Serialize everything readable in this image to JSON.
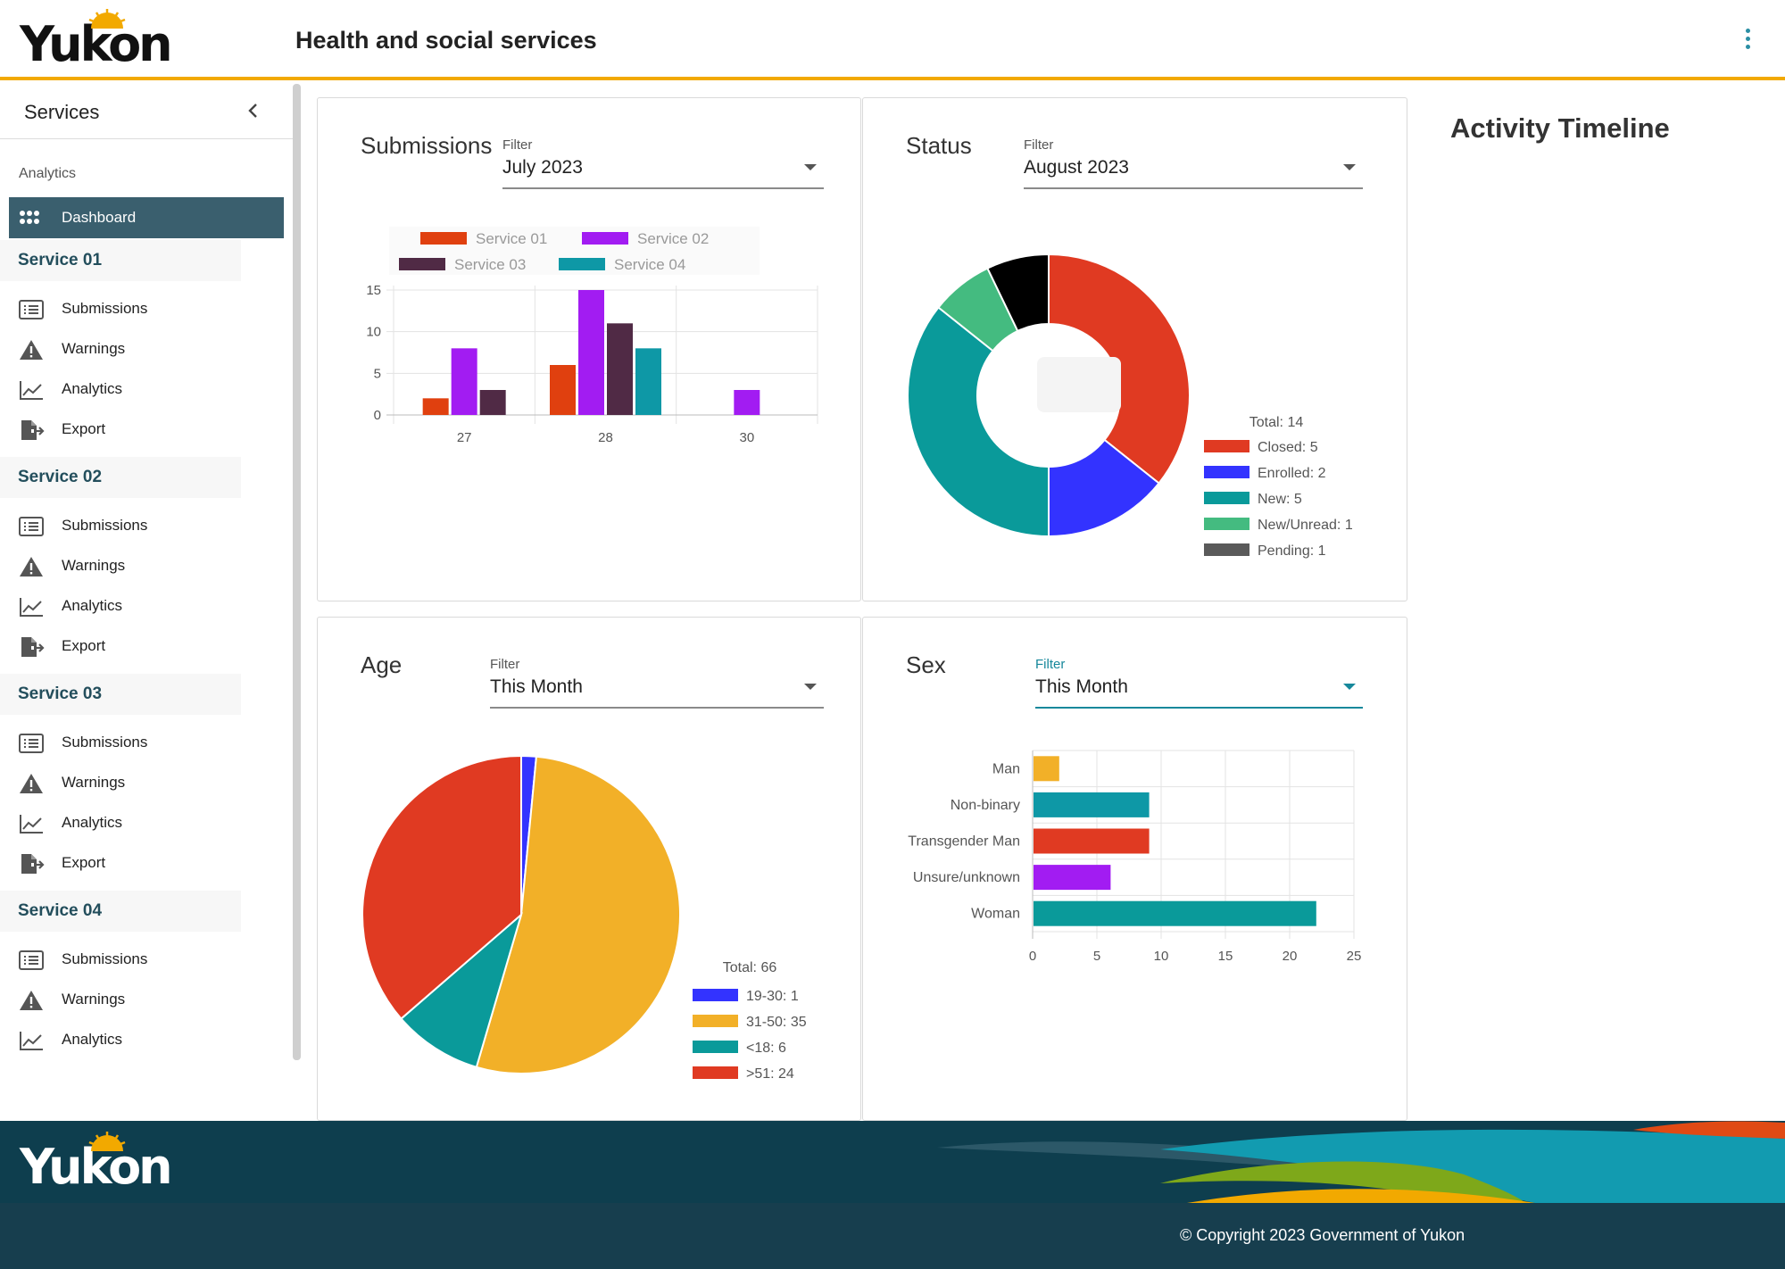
{
  "brand": {
    "logo_text": "Yukon"
  },
  "header": {
    "title": "Health and social services",
    "menu_icon": "kebab-menu-icon"
  },
  "sidebar": {
    "title": "Services",
    "section_label": "Analytics",
    "dashboard_label": "Dashboard",
    "groups": [
      {
        "name": "Service 01",
        "items": [
          "Submissions",
          "Warnings",
          "Analytics",
          "Export"
        ]
      },
      {
        "name": "Service 02",
        "items": [
          "Submissions",
          "Warnings",
          "Analytics",
          "Export"
        ]
      },
      {
        "name": "Service 03",
        "items": [
          "Submissions",
          "Warnings",
          "Analytics",
          "Export"
        ]
      },
      {
        "name": "Service 04",
        "items": [
          "Submissions",
          "Warnings",
          "Analytics"
        ]
      }
    ]
  },
  "cards": {
    "submissions": {
      "title": "Submissions",
      "filter_label": "Filter",
      "filter_value": "July 2023"
    },
    "status": {
      "title": "Status",
      "filter_label": "Filter",
      "filter_value": "August 2023"
    },
    "age": {
      "title": "Age",
      "filter_label": "Filter",
      "filter_value": "This Month"
    },
    "sex": {
      "title": "Sex",
      "filter_label": "Filter",
      "filter_value": "This Month"
    }
  },
  "timeline": {
    "title": "Activity Timeline"
  },
  "footer": {
    "copyright": "© Copyright 2023 Government of Yukon"
  },
  "colors": {
    "accent": "#f2a900",
    "sidebar_active": "#3a5f6e",
    "footer": "#173e4e",
    "teal": "#17889b"
  },
  "chart_data": [
    {
      "type": "bar",
      "categories": [
        "27",
        "28",
        "30"
      ],
      "series": [
        {
          "name": "Service 01",
          "color": "#e0400f",
          "values": [
            2,
            6,
            0
          ]
        },
        {
          "name": "Service 02",
          "color": "#a21cf2",
          "values": [
            8,
            15,
            3
          ]
        },
        {
          "name": "Service 03",
          "color": "#502a45",
          "values": [
            3,
            11,
            0
          ]
        },
        {
          "name": "Service 04",
          "color": "#0e98a6",
          "values": [
            0,
            8,
            0
          ]
        }
      ],
      "ylim": [
        0,
        15
      ],
      "yticks": [
        0,
        5,
        10,
        15
      ],
      "legend": "top",
      "grid": true
    },
    {
      "type": "pie",
      "donut": true,
      "total_label": "Total: 14",
      "slices": [
        {
          "label": "Closed: 5",
          "value": 5,
          "color": "#e03a22"
        },
        {
          "label": "Enrolled: 2",
          "value": 2,
          "color": "#3333ff"
        },
        {
          "label": "New: 5",
          "value": 5,
          "color": "#0a9a9a"
        },
        {
          "label": "New/Unread: 1",
          "value": 1,
          "color": "#44bb80"
        },
        {
          "label": "Pending: 1",
          "value": 1,
          "color": "#000000"
        }
      ],
      "legend_colors": [
        "#e03a22",
        "#3333ff",
        "#0a9a9a",
        "#44bb80",
        "#5a5a5a"
      ],
      "legend": "bottom-right"
    },
    {
      "type": "pie",
      "total_label": "Total: 66",
      "slices": [
        {
          "label": "19-30: 1",
          "value": 1,
          "color": "#3333ff"
        },
        {
          "label": "31-50: 35",
          "value": 35,
          "color": "#f2b028"
        },
        {
          "label": "<18: 6",
          "value": 6,
          "color": "#0a9a9a"
        },
        {
          "label": ">51: 24",
          "value": 24,
          "color": "#e03a22"
        }
      ],
      "legend": "bottom-right"
    },
    {
      "type": "bar",
      "orientation": "horizontal",
      "categories": [
        "Man",
        "Non-binary",
        "Transgender Man",
        "Unsure/unknown",
        "Woman"
      ],
      "values": [
        2,
        9,
        9,
        6,
        22
      ],
      "colors": [
        "#f2b028",
        "#0e98a6",
        "#e03a22",
        "#a21cf2",
        "#0a9a9a"
      ],
      "xlim": [
        0,
        25
      ],
      "xticks": [
        0,
        5,
        10,
        15,
        20,
        25
      ],
      "grid": true
    }
  ]
}
